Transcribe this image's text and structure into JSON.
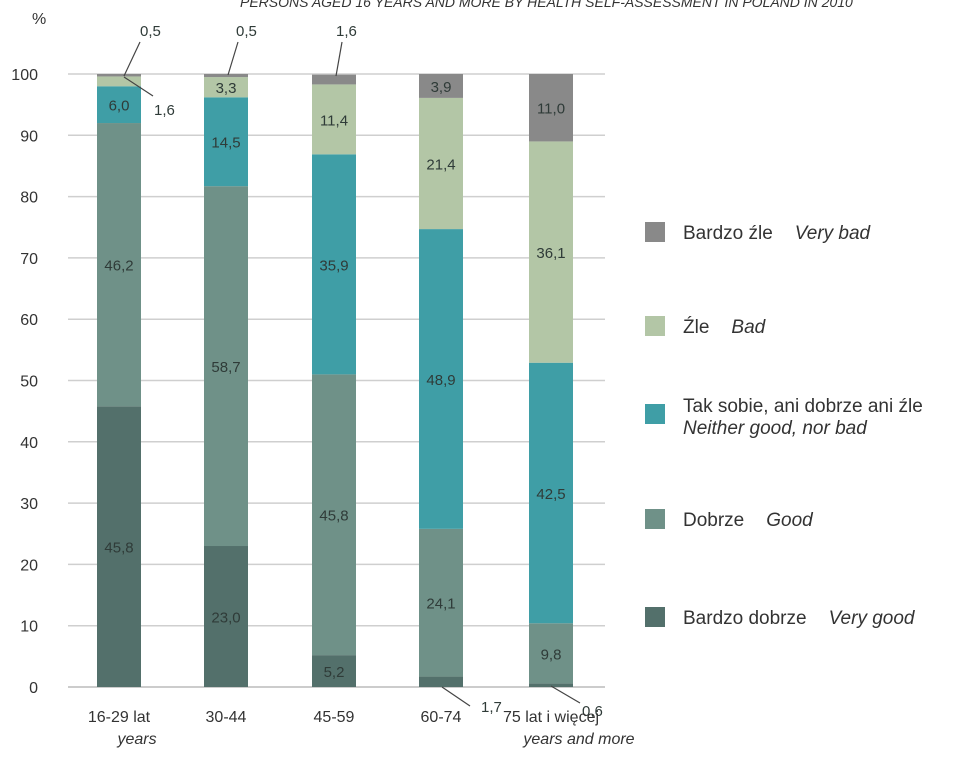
{
  "chart_data": {
    "type": "bar",
    "stacked": true,
    "title": "PERSONS AGED 16 YEARS AND MORE BY HEALTH SELF-ASSESSMENT IN POLAND IN 2010",
    "y_unit": "%",
    "ylim": [
      0,
      100
    ],
    "yticks": [
      "0",
      "10",
      "20",
      "30",
      "40",
      "50",
      "60",
      "70",
      "80",
      "90",
      "100"
    ],
    "grid": true,
    "legend_position": "right",
    "categories": [
      {
        "pl": "16-29 lat",
        "en": "years"
      },
      {
        "pl": "30-44",
        "en": ""
      },
      {
        "pl": "45-59",
        "en": ""
      },
      {
        "pl": "60-74",
        "en": ""
      },
      {
        "pl": "75 lat i więcej",
        "en": "years and more"
      }
    ],
    "series": [
      {
        "name_pl": "Bardzo dobrze",
        "name_en": "Very good",
        "color": "#53706b",
        "values": [
          45.8,
          23.0,
          5.2,
          1.7,
          0.6
        ],
        "labels": [
          "45,8",
          "23,0",
          "5,2",
          "1,7",
          "0,6"
        ]
      },
      {
        "name_pl": "Dobrze",
        "name_en": "Good",
        "color": "#6f9188",
        "values": [
          46.2,
          58.7,
          45.8,
          24.1,
          9.8
        ],
        "labels": [
          "46,2",
          "58,7",
          "45,8",
          "24,1",
          "9,8"
        ]
      },
      {
        "name_pl": "Tak sobie, ani dobrze ani źle",
        "name_en": "Neither good, nor bad",
        "color": "#3f9ea6",
        "values": [
          6.0,
          14.5,
          35.9,
          48.9,
          42.5
        ],
        "labels": [
          "6,0",
          "14,5",
          "35,9",
          "48,9",
          "42,5"
        ]
      },
      {
        "name_pl": "Źle",
        "name_en": "Bad",
        "color": "#b3c6a6",
        "values": [
          1.6,
          3.3,
          11.4,
          21.4,
          36.1
        ],
        "labels": [
          "1,6",
          "3,3",
          "11,4",
          "21,4",
          "36,1"
        ]
      },
      {
        "name_pl": "Bardzo źle",
        "name_en": "Very bad",
        "color": "#898989",
        "values": [
          0.5,
          0.5,
          1.6,
          3.9,
          11.0
        ],
        "labels": [
          "0,5",
          "0,5",
          "1,6",
          "3,9",
          "11,0"
        ]
      }
    ]
  }
}
